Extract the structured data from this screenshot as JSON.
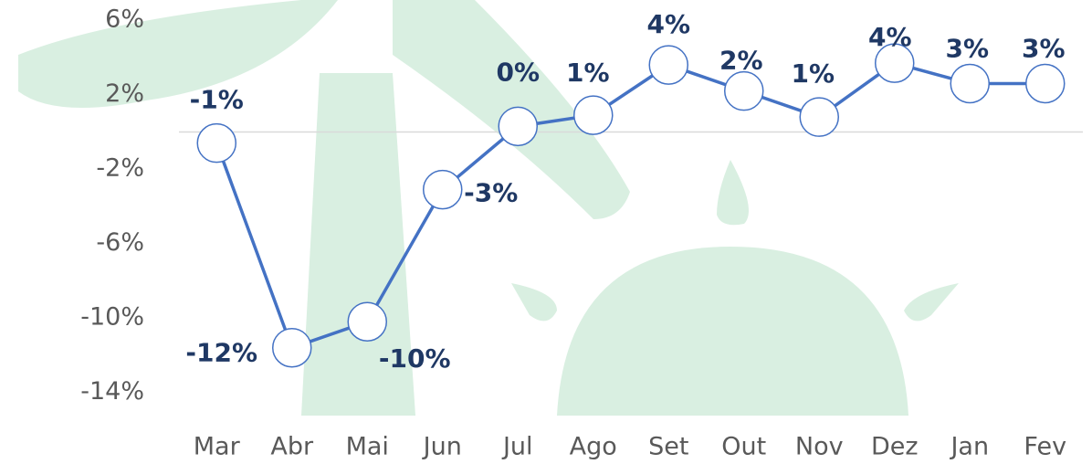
{
  "chart_data": {
    "type": "line",
    "categories": [
      "Mar",
      "Abr",
      "Mai",
      "Jun",
      "Jul",
      "Ago",
      "Set",
      "Out",
      "Nov",
      "Dez",
      "Jan",
      "Fev"
    ],
    "series": [
      {
        "color": "#4472c4",
        "values": [
          -0.6,
          -11.6,
          -10.2,
          -3.1,
          0.3,
          0.9,
          3.6,
          2.2,
          0.8,
          3.7,
          2.6,
          2.6
        ],
        "value_labels": [
          "-1%",
          "-12%",
          "-10%",
          "-3%",
          "0%",
          "1%",
          "4%",
          "2%",
          "1%",
          "4%",
          "3%",
          "3%"
        ]
      }
    ],
    "ylim": [
      -15,
      6.6
    ],
    "yticks": [
      {
        "value": -14,
        "label": "-14%"
      },
      {
        "value": -10,
        "label": "-10%"
      },
      {
        "value": -6,
        "label": "-6%"
      },
      {
        "value": -2,
        "label": "-2%"
      },
      {
        "value": 2,
        "label": "2%"
      },
      {
        "value": 6,
        "label": "6%"
      }
    ]
  }
}
